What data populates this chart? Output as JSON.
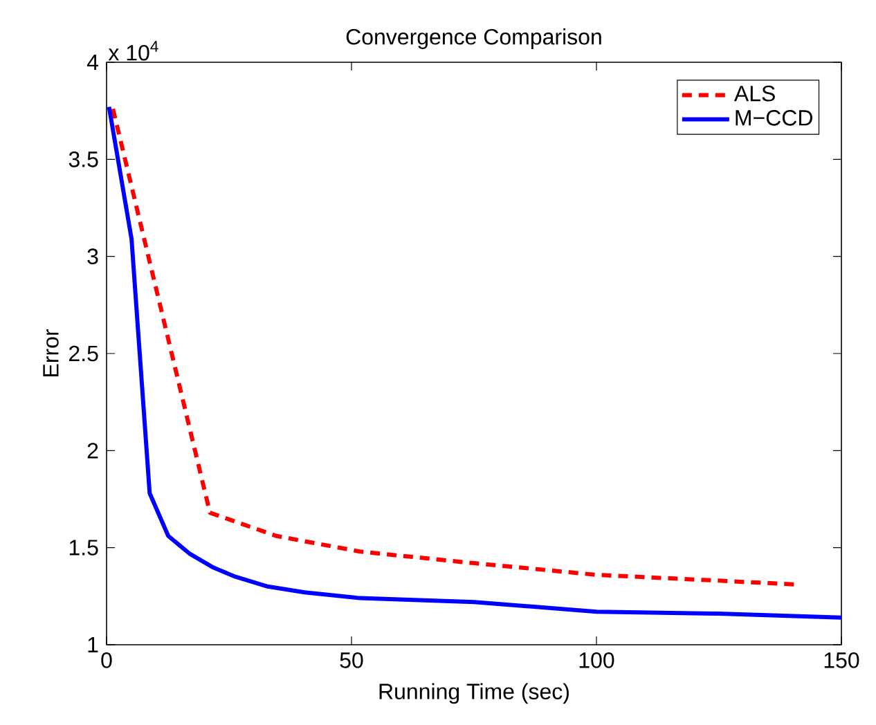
{
  "chart_data": {
    "type": "line",
    "title": "Convergence Comparison",
    "xlabel": "Running Time (sec)",
    "ylabel": "Error",
    "annotations": [
      "x 10$^{4}$"
    ],
    "series": [
      {
        "name": "ALS",
        "color": "#ff0000",
        "line_style": "dashed",
        "x": [
          1.3,
          21.1,
          34.7,
          51.7,
          75,
          100,
          125,
          141
        ],
        "values": [
          3.76,
          1.68,
          1.56,
          1.48,
          1.42,
          1.36,
          1.33,
          1.31
        ]
      },
      {
        "name": "M−CCD",
        "color": "#0000ff",
        "line_style": "solid",
        "x": [
          0.5,
          5.1,
          8.8,
          12.6,
          16.9,
          21.6,
          26.3,
          32.9,
          40.4,
          51.7,
          75,
          100,
          125,
          150
        ],
        "values": [
          3.77,
          3.09,
          1.78,
          1.56,
          1.47,
          1.4,
          1.35,
          1.3,
          1.27,
          1.24,
          1.22,
          1.17,
          1.16,
          1.14
        ]
      }
    ],
    "xlim": [
      0,
      150
    ],
    "xticks": [
      0,
      50,
      100,
      150
    ],
    "ylim": [
      1,
      4
    ],
    "yticks": [
      1,
      1.5,
      2,
      2.5,
      3,
      3.5,
      4
    ],
    "grid": false,
    "legend": "top right",
    "marker": "none"
  }
}
